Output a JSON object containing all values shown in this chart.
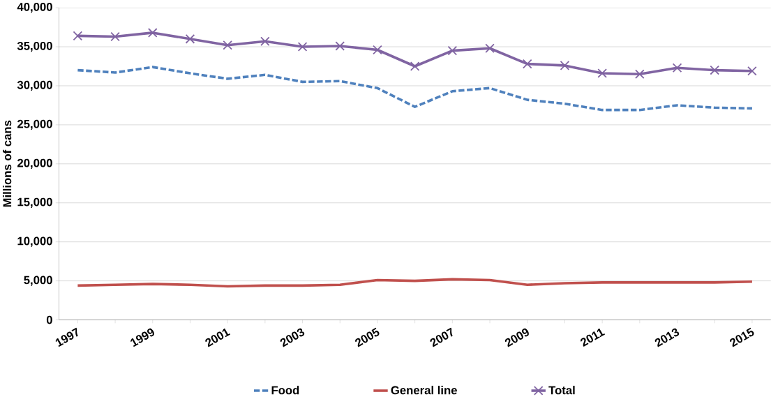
{
  "chart_data": {
    "type": "line",
    "ylabel": "Millions of cans",
    "categories": [
      "1997",
      null,
      "1999",
      null,
      "2001",
      null,
      "2003",
      null,
      "2005",
      null,
      "2007",
      null,
      "2009",
      null,
      "2011",
      null,
      "2013",
      null,
      "2015"
    ],
    "series": [
      {
        "name": "Food",
        "color": "#4f81bd",
        "line_style": "dashed",
        "marker": "none",
        "values": [
          32000,
          31700,
          32400,
          31600,
          30900,
          31400,
          30500,
          30600,
          29700,
          27300,
          29300,
          29700,
          28200,
          27700,
          26900,
          26900,
          27500,
          27200,
          27100
        ]
      },
      {
        "name": "General line",
        "color": "#c0504d",
        "line_style": "solid",
        "marker": "none",
        "values": [
          4400,
          4500,
          4600,
          4500,
          4300,
          4400,
          4400,
          4500,
          5100,
          5000,
          5200,
          5100,
          4500,
          4700,
          4800,
          4800,
          4800,
          4800,
          4900
        ]
      },
      {
        "name": "Total",
        "color": "#8064a2",
        "line_style": "solid",
        "marker": "cross",
        "values": [
          36400,
          36300,
          36800,
          36000,
          35200,
          35700,
          35000,
          35100,
          34600,
          32500,
          34500,
          34800,
          32800,
          32600,
          31600,
          31500,
          32300,
          32000,
          31900
        ]
      }
    ],
    "ylim": [
      0,
      40000
    ],
    "yticks": [
      0,
      {
        "value": 5000,
        "label": "5,000"
      },
      {
        "value": 10000,
        "label": "10,000"
      },
      {
        "value": 15000,
        "label": "15,000"
      },
      {
        "value": 20000,
        "label": "20,000"
      },
      {
        "value": 25000,
        "label": "25,000"
      },
      {
        "value": 30000,
        "label": "30,000"
      },
      {
        "value": 35000,
        "label": "35,000"
      },
      {
        "value": 40000,
        "label": "40,000"
      }
    ],
    "grid": "y",
    "legend": "bottom"
  }
}
